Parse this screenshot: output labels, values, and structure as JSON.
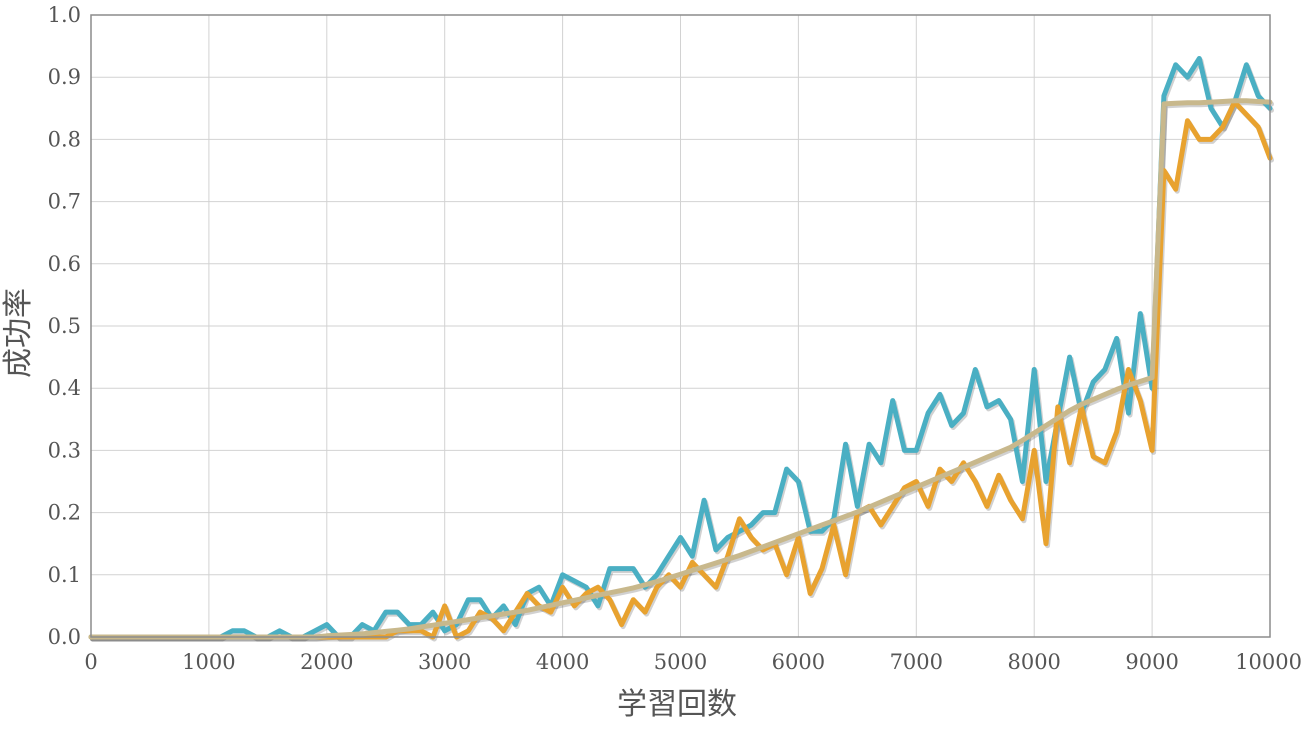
{
  "chart_data": {
    "type": "line",
    "title": "",
    "xlabel": "学習回数",
    "ylabel": "成功率",
    "xlim": [
      0,
      10000
    ],
    "ylim": [
      0,
      1.0
    ],
    "xticks": [
      "0",
      "1000",
      "2000",
      "3000",
      "4000",
      "5000",
      "6000",
      "7000",
      "8000",
      "9000",
      "10000"
    ],
    "yticks": [
      "0.0",
      "0.1",
      "0.2",
      "0.3",
      "0.4",
      "0.5",
      "0.6",
      "0.7",
      "0.8",
      "0.9",
      "1.0"
    ],
    "grid": true,
    "legend": "none",
    "x": [
      0,
      100,
      200,
      300,
      400,
      500,
      600,
      700,
      800,
      900,
      1000,
      1100,
      1200,
      1300,
      1400,
      1500,
      1600,
      1700,
      1800,
      1900,
      2000,
      2100,
      2200,
      2300,
      2400,
      2500,
      2600,
      2700,
      2800,
      2900,
      3000,
      3100,
      3200,
      3300,
      3400,
      3500,
      3600,
      3700,
      3800,
      3900,
      4000,
      4100,
      4200,
      4300,
      4400,
      4500,
      4600,
      4700,
      4800,
      4900,
      5000,
      5100,
      5200,
      5300,
      5400,
      5500,
      5600,
      5700,
      5800,
      5900,
      6000,
      6100,
      6200,
      6300,
      6400,
      6500,
      6600,
      6700,
      6800,
      6900,
      7000,
      7100,
      7200,
      7300,
      7400,
      7500,
      7600,
      7700,
      7800,
      7900,
      8000,
      8100,
      8200,
      8300,
      8400,
      8500,
      8600,
      8700,
      8800,
      8900,
      9000,
      9100,
      9200,
      9300,
      9400,
      9500,
      9600,
      9700,
      9800,
      9900,
      10000
    ],
    "series": [
      {
        "color": "#4aafc3",
        "values": [
          0,
          0,
          0,
          0,
          0,
          0,
          0,
          0,
          0,
          0,
          0,
          0,
          0.01,
          0.01,
          0,
          0,
          0.01,
          0,
          0,
          0.01,
          0.02,
          0,
          0,
          0.02,
          0.01,
          0.04,
          0.04,
          0.02,
          0.02,
          0.04,
          0.01,
          0.02,
          0.06,
          0.06,
          0.03,
          0.05,
          0.02,
          0.07,
          0.08,
          0.05,
          0.1,
          0.09,
          0.08,
          0.05,
          0.11,
          0.11,
          0.11,
          0.08,
          0.1,
          0.13,
          0.16,
          0.13,
          0.22,
          0.14,
          0.16,
          0.17,
          0.18,
          0.2,
          0.2,
          0.27,
          0.25,
          0.17,
          0.17,
          0.19,
          0.31,
          0.21,
          0.31,
          0.28,
          0.38,
          0.3,
          0.3,
          0.36,
          0.39,
          0.34,
          0.36,
          0.43,
          0.37,
          0.38,
          0.35,
          0.25,
          0.43,
          0.25,
          0.35,
          0.45,
          0.36,
          0.41,
          0.43,
          0.48,
          0.36,
          0.52,
          0.4,
          0.87,
          0.92,
          0.9,
          0.93,
          0.85,
          0.82,
          0.86,
          0.92,
          0.87,
          0.85
        ]
      },
      {
        "color": "#e8a22f",
        "values": [
          0,
          0,
          0,
          0,
          0,
          0,
          0,
          0,
          0,
          0,
          0,
          0,
          0,
          0,
          0,
          0,
          0,
          0,
          0,
          0,
          0,
          0,
          0,
          0,
          0,
          0,
          0.01,
          0.01,
          0.01,
          0,
          0.05,
          0,
          0.01,
          0.04,
          0.03,
          0.01,
          0.04,
          0.07,
          0.05,
          0.04,
          0.08,
          0.05,
          0.07,
          0.08,
          0.06,
          0.02,
          0.06,
          0.04,
          0.08,
          0.1,
          0.08,
          0.12,
          0.1,
          0.08,
          0.13,
          0.19,
          0.16,
          0.14,
          0.15,
          0.1,
          0.16,
          0.07,
          0.11,
          0.18,
          0.1,
          0.2,
          0.21,
          0.18,
          0.21,
          0.24,
          0.25,
          0.21,
          0.27,
          0.25,
          0.28,
          0.25,
          0.21,
          0.26,
          0.22,
          0.19,
          0.3,
          0.15,
          0.37,
          0.28,
          0.37,
          0.29,
          0.28,
          0.33,
          0.43,
          0.38,
          0.3,
          0.75,
          0.72,
          0.83,
          0.8,
          0.8,
          0.82,
          0.86,
          0.84,
          0.82,
          0.77
        ]
      },
      {
        "color": "#c8b88c",
        "values": [
          0,
          0,
          0,
          0,
          0,
          0,
          0,
          0,
          0,
          0,
          0,
          0,
          0,
          0,
          0,
          0,
          0,
          0,
          0,
          0,
          0.002,
          0.003,
          0.004,
          0.005,
          0.007,
          0.009,
          0.011,
          0.013,
          0.016,
          0.019,
          0.022,
          0.025,
          0.028,
          0.031,
          0.034,
          0.037,
          0.04,
          0.043,
          0.047,
          0.051,
          0.055,
          0.059,
          0.063,
          0.067,
          0.071,
          0.075,
          0.079,
          0.084,
          0.089,
          0.095,
          0.101,
          0.107,
          0.113,
          0.119,
          0.125,
          0.131,
          0.138,
          0.145,
          0.152,
          0.159,
          0.166,
          0.173,
          0.18,
          0.187,
          0.194,
          0.201,
          0.209,
          0.217,
          0.225,
          0.233,
          0.241,
          0.249,
          0.257,
          0.265,
          0.273,
          0.281,
          0.289,
          0.297,
          0.305,
          0.316,
          0.328,
          0.34,
          0.352,
          0.364,
          0.374,
          0.382,
          0.39,
          0.398,
          0.405,
          0.411,
          0.417,
          0.857,
          0.858,
          0.859,
          0.859,
          0.86,
          0.861,
          0.862,
          0.862,
          0.861,
          0.86
        ]
      }
    ]
  }
}
